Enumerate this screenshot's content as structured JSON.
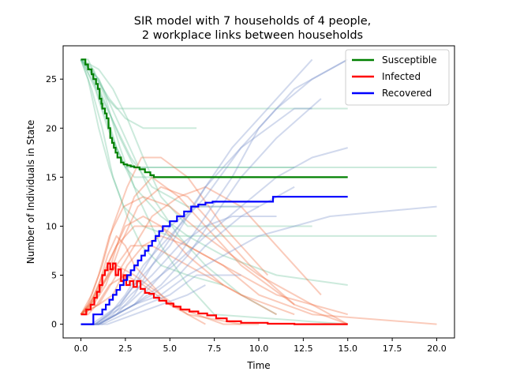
{
  "chart_data": {
    "type": "line",
    "title_line1": "SIR model with 7 households of 4 people,",
    "title_line2": "2 workplace links between households",
    "xlabel": "Time",
    "ylabel": "Number of Individuals in State",
    "xlim": [
      -1.0,
      21.0
    ],
    "ylim": [
      -1.4,
      28.4
    ],
    "x_ticks": [
      0.0,
      2.5,
      5.0,
      7.5,
      10.0,
      12.5,
      15.0,
      17.5,
      20.0
    ],
    "x_tick_labels": [
      "0.0",
      "2.5",
      "5.0",
      "7.5",
      "10.0",
      "12.5",
      "15.0",
      "17.5",
      "20.0"
    ],
    "y_ticks": [
      0,
      5,
      10,
      15,
      20,
      25
    ],
    "y_tick_labels": [
      "0",
      "5",
      "10",
      "15",
      "20",
      "25"
    ],
    "grid": false,
    "legend_position": "top-right",
    "colors": {
      "susceptible": "#008000",
      "infected": "#ff0000",
      "recovered": "#0000ff",
      "sample_susceptible": "#6cc49a",
      "sample_infected": "#f06a3c",
      "sample_recovered": "#7a92cc"
    },
    "series": [
      {
        "name": "Susceptible",
        "color": "#008000",
        "x": [
          0,
          0.25,
          0.4,
          0.6,
          0.7,
          0.85,
          0.95,
          1.05,
          1.15,
          1.2,
          1.35,
          1.45,
          1.55,
          1.65,
          1.75,
          1.85,
          1.95,
          2.05,
          2.25,
          2.4,
          2.6,
          2.8,
          3.0,
          3.3,
          3.6,
          3.9,
          4.1,
          5.0,
          15.0
        ],
        "y": [
          27,
          26.5,
          26,
          25.5,
          25,
          24.5,
          24,
          23,
          22.5,
          22,
          21.5,
          21,
          20,
          19,
          18.5,
          18,
          17.5,
          17,
          16.5,
          16.3,
          16.2,
          16.1,
          16,
          15.8,
          15.5,
          15.2,
          15,
          15,
          15
        ]
      },
      {
        "name": "Infected",
        "color": "#ff0000",
        "x": [
          0,
          0.3,
          0.55,
          0.75,
          0.9,
          1.05,
          1.2,
          1.35,
          1.5,
          1.65,
          1.8,
          1.95,
          2.1,
          2.25,
          2.4,
          2.55,
          2.75,
          2.95,
          3.15,
          3.35,
          3.6,
          3.85,
          4.1,
          4.4,
          4.8,
          5.2,
          5.6,
          6.1,
          6.6,
          7.1,
          7.6,
          8.2,
          9.0,
          10.5,
          12.0,
          15.0
        ],
        "y": [
          1,
          1.5,
          2,
          2.7,
          3.3,
          4,
          5,
          5.5,
          6.2,
          5.6,
          6.2,
          5,
          5.6,
          4.4,
          5,
          4,
          4.4,
          3.8,
          4.4,
          3.6,
          3.2,
          3.1,
          2.7,
          2.4,
          2.1,
          1.8,
          1.5,
          1.3,
          1.1,
          0.9,
          0.6,
          0.3,
          0.15,
          0.05,
          0,
          0
        ]
      },
      {
        "name": "Recovered",
        "color": "#0000ff",
        "x": [
          0,
          0.6,
          0.7,
          1.0,
          1.2,
          1.4,
          1.6,
          1.8,
          2.0,
          2.2,
          2.4,
          2.6,
          2.8,
          3.0,
          3.2,
          3.4,
          3.6,
          3.8,
          4.0,
          4.2,
          4.4,
          4.6,
          5.0,
          5.4,
          5.8,
          6.2,
          6.6,
          7.0,
          7.4,
          8.0,
          9.0,
          10.0,
          10.7,
          10.8,
          12.0,
          13.0,
          15.0
        ],
        "y": [
          0,
          0,
          1,
          1,
          1.5,
          2,
          2.5,
          3,
          3.5,
          4,
          4.5,
          5,
          5.5,
          6,
          6.5,
          7,
          7.5,
          8,
          8.5,
          9,
          9.5,
          10,
          10.5,
          11,
          11.5,
          12,
          12.2,
          12.4,
          12.5,
          12.5,
          12.5,
          12.5,
          12.5,
          13,
          13,
          13,
          13
        ]
      }
    ],
    "sample_runs": {
      "susceptible": [
        {
          "x": [
            0,
            0.5,
            1.0,
            1.5,
            2.0,
            2.5,
            3.0,
            4.0,
            10.0
          ],
          "y": [
            27,
            26,
            24,
            21,
            18,
            16,
            15,
            15,
            15
          ]
        },
        {
          "x": [
            0,
            0.8,
            1.5,
            2.2,
            3.0,
            12.0
          ],
          "y": [
            27,
            25,
            22,
            19,
            16,
            16
          ]
        },
        {
          "x": [
            0,
            0.4,
            1.0,
            1.6,
            2.4,
            3.5,
            5.0,
            20.0
          ],
          "y": [
            27,
            25,
            20,
            16,
            12,
            10,
            9,
            9
          ]
        },
        {
          "x": [
            0,
            0.6,
            1.2,
            1.8,
            2.6,
            3.4,
            4.5,
            6.0,
            8.0
          ],
          "y": [
            27,
            24,
            20,
            15,
            11,
            8,
            6,
            5,
            4
          ]
        },
        {
          "x": [
            0,
            1.0,
            2.0,
            3.0,
            4.0,
            5.5,
            7.0,
            9.0,
            11.0
          ],
          "y": [
            27,
            25,
            21,
            17,
            13,
            9,
            6,
            3,
            1
          ]
        },
        {
          "x": [
            0,
            0.5,
            1.0,
            1.5,
            2.0,
            3.0,
            15.0
          ],
          "y": [
            27,
            26,
            25,
            23,
            22,
            22,
            22
          ]
        },
        {
          "x": [
            0,
            0.7,
            1.4,
            2.2,
            3.2,
            4.5,
            6.0,
            7.5,
            15.0
          ],
          "y": [
            27,
            26,
            23,
            18,
            13,
            8,
            4,
            1,
            0
          ]
        },
        {
          "x": [
            0,
            0.3,
            0.8,
            1.5,
            2.5,
            20.0
          ],
          "y": [
            27,
            26,
            24,
            20,
            16,
            16
          ]
        },
        {
          "x": [
            0,
            1.0,
            1.8,
            2.6,
            3.5,
            4.5,
            6.0,
            13.0
          ],
          "y": [
            27,
            26,
            24,
            21,
            17,
            13,
            10,
            10
          ]
        },
        {
          "x": [
            0,
            0.5,
            1.2,
            2.0,
            3.0,
            4.5,
            6.0,
            8.0,
            11.0,
            15.0
          ],
          "y": [
            27,
            26,
            22,
            18,
            14,
            11,
            9,
            7,
            5,
            4
          ]
        },
        {
          "x": [
            0,
            0.6,
            1.2,
            2.0,
            2.8,
            4.0,
            6.0,
            9.0
          ],
          "y": [
            27,
            25,
            23,
            20,
            17,
            14,
            12,
            12
          ]
        },
        {
          "x": [
            0,
            0.4,
            0.9,
            1.6,
            2.5,
            3.5,
            6.5
          ],
          "y": [
            27,
            27,
            25,
            23,
            21,
            20,
            20
          ]
        }
      ],
      "infected": [
        {
          "x": [
            0,
            0.5,
            1.0,
            1.5,
            2.0,
            2.5,
            3.0,
            4.0,
            5.0,
            6.5,
            8.0,
            10.0
          ],
          "y": [
            1,
            2,
            4,
            7,
            9,
            8,
            6,
            4,
            2,
            1,
            0,
            0
          ]
        },
        {
          "x": [
            0,
            0.8,
            1.5,
            2.2,
            3.0,
            4.0,
            5.5,
            7.0,
            9.0,
            12.0
          ],
          "y": [
            1,
            3,
            5,
            9,
            13,
            15,
            13,
            10,
            6,
            2
          ]
        },
        {
          "x": [
            0,
            0.4,
            1.0,
            1.6,
            2.4,
            3.5,
            5.0,
            7.0,
            10.0,
            13.0,
            15.0
          ],
          "y": [
            1,
            2,
            5,
            9,
            12,
            13,
            12,
            9,
            5,
            2,
            0
          ]
        },
        {
          "x": [
            0,
            0.6,
            1.2,
            1.8,
            2.6,
            3.4,
            4.5,
            6.0,
            8.0,
            10.5
          ],
          "y": [
            1,
            3,
            6,
            10,
            14,
            17,
            17,
            15,
            10,
            5
          ]
        },
        {
          "x": [
            0,
            1.0,
            2.0,
            3.0,
            4.0,
            5.5,
            7.0,
            9.0,
            11.0,
            13.5
          ],
          "y": [
            1,
            2,
            5,
            8,
            11,
            13,
            14,
            12,
            8,
            3
          ]
        },
        {
          "x": [
            0,
            0.5,
            1.0,
            1.5,
            2.0,
            3.0,
            4.5,
            6.0,
            9.0
          ],
          "y": [
            1,
            2,
            3,
            5,
            6,
            5,
            3,
            1,
            0
          ]
        },
        {
          "x": [
            0,
            0.7,
            1.4,
            2.2,
            3.2,
            4.5,
            6.0,
            7.5,
            9.5,
            12.0,
            15.0
          ],
          "y": [
            1,
            2,
            4,
            8,
            12,
            14,
            13,
            10,
            6,
            2,
            0
          ]
        },
        {
          "x": [
            0,
            0.3,
            0.8,
            1.5,
            2.5,
            3.5,
            4.5,
            6.0,
            8.0,
            11.0
          ],
          "y": [
            1,
            1,
            3,
            6,
            10,
            11,
            10,
            7,
            4,
            1
          ]
        },
        {
          "x": [
            0,
            1.0,
            1.8,
            2.6,
            3.5,
            4.5,
            6.0,
            8.0,
            10.0,
            13.0,
            20.0
          ],
          "y": [
            1,
            2,
            3,
            6,
            8,
            9,
            8,
            6,
            3,
            1,
            0
          ]
        },
        {
          "x": [
            0,
            0.5,
            1.2,
            2.0,
            3.0,
            4.5,
            6.0,
            8.0,
            11.0,
            15.0
          ],
          "y": [
            1,
            2,
            5,
            8,
            10,
            10,
            8,
            6,
            3,
            1
          ]
        },
        {
          "x": [
            0,
            0.6,
            1.2,
            2.0,
            2.8,
            4.0,
            6.0,
            9.0,
            12.0
          ],
          "y": [
            1,
            2,
            4,
            6,
            8,
            8,
            6,
            3,
            1
          ]
        },
        {
          "x": [
            0,
            0.4,
            0.9,
            1.6,
            2.5,
            3.5,
            5.0,
            7.0
          ],
          "y": [
            1,
            1,
            2,
            4,
            5,
            4,
            2,
            0
          ]
        }
      ],
      "recovered": [
        {
          "x": [
            0,
            0.8,
            1.5,
            2.2,
            3.0,
            4.0,
            5.0,
            6.5,
            8.0,
            10.0
          ],
          "y": [
            0,
            0,
            1,
            2,
            4,
            7,
            10,
            12,
            12,
            12
          ]
        },
        {
          "x": [
            0,
            1.0,
            2.0,
            3.0,
            4.0,
            5.5,
            7.0,
            9.0,
            12.0,
            13.0
          ],
          "y": [
            0,
            0,
            1,
            3,
            6,
            10,
            14,
            18,
            22,
            22
          ]
        },
        {
          "x": [
            0,
            0.8,
            1.6,
            2.5,
            3.5,
            5.0,
            7.0,
            9.0,
            11.0,
            13.0,
            15.0
          ],
          "y": [
            0,
            0,
            1,
            3,
            6,
            9,
            13,
            18,
            22,
            25,
            27
          ]
        },
        {
          "x": [
            0,
            0.6,
            1.4,
            2.2,
            3.0,
            4.0,
            5.0,
            6.0,
            7.0,
            8.5,
            10.5,
            13.0
          ],
          "y": [
            0,
            0,
            1,
            2,
            4,
            6,
            8,
            11,
            14,
            18,
            22,
            27
          ]
        },
        {
          "x": [
            0,
            1.0,
            2.0,
            3.0,
            4.5,
            6.0,
            7.5,
            9.0,
            11.0,
            13.5
          ],
          "y": [
            0,
            0,
            1,
            2,
            4,
            7,
            11,
            15,
            19,
            23
          ]
        },
        {
          "x": [
            0,
            1.2,
            2.4,
            3.6,
            5.0,
            6.5,
            9.0
          ],
          "y": [
            0,
            0,
            1,
            2,
            3,
            5,
            5
          ]
        },
        {
          "x": [
            0,
            1.0,
            2.0,
            3.0,
            4.0,
            5.5,
            7.0,
            8.5,
            10.0,
            12.0,
            15.0
          ],
          "y": [
            0,
            0,
            1,
            2,
            4,
            7,
            11,
            15,
            20,
            24,
            27
          ]
        },
        {
          "x": [
            0,
            0.9,
            1.8,
            2.8,
            4.0,
            5.5,
            7.0,
            8.5,
            11.0
          ],
          "y": [
            0,
            0,
            1,
            3,
            5,
            8,
            10,
            11,
            11
          ]
        },
        {
          "x": [
            0,
            1.0,
            2.0,
            3.0,
            4.5,
            6.0,
            8.0,
            10.0,
            12.0,
            14.0,
            17.0,
            20.0
          ],
          "y": [
            0,
            0,
            1,
            2,
            3,
            5,
            7,
            9,
            10,
            11,
            11.5,
            12
          ]
        },
        {
          "x": [
            0,
            0.8,
            1.6,
            2.6,
            3.8,
            5.2,
            7.0,
            9.0,
            11.0,
            13.0,
            15.0
          ],
          "y": [
            0,
            0,
            1,
            2,
            4,
            6,
            9,
            12,
            15,
            17,
            18
          ]
        },
        {
          "x": [
            0,
            1.0,
            2.0,
            3.0,
            4.0,
            5.5,
            7.0,
            9.0,
            12.0
          ],
          "y": [
            0,
            0,
            1,
            2,
            3,
            5,
            8,
            11,
            14
          ]
        },
        {
          "x": [
            0,
            1.5,
            3.0,
            4.5,
            6.0,
            7.0
          ],
          "y": [
            0,
            0,
            1,
            2,
            3,
            4
          ]
        }
      ]
    }
  }
}
